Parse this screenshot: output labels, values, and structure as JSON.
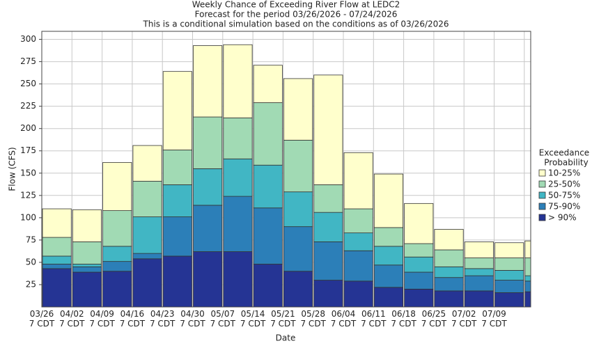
{
  "chart_data": {
    "type": "stacked-bar",
    "title": "Weekly Chance of Exceeding River Flow at LEDC2",
    "subtitle": "Forecast for the period 03/26/2026 - 07/24/2026",
    "note": "This is a conditional simulation based on the conditions as of 03/26/2026",
    "x_label": "Date",
    "y_label": "Flow (CFS)",
    "legend_title": [
      "Exceedance",
      "Probability"
    ],
    "categories": [
      "03/26 7 CDT",
      "04/02 7 CDT",
      "04/09 7 CDT",
      "04/16 7 CDT",
      "04/23 7 CDT",
      "04/30 7 CDT",
      "05/07 7 CDT",
      "05/14 7 CDT",
      "05/21 7 CDT",
      "05/28 7 CDT",
      "06/04 7 CDT",
      "06/11 7 CDT",
      "06/18 7 CDT",
      "06/25 7 CDT",
      "07/02 7 CDT",
      "07/09 7 CDT",
      null
    ],
    "series": [
      {
        "name": "> 90%",
        "color": "#253494",
        "values": [
          43,
          39,
          40,
          54,
          57,
          62,
          62,
          48,
          40,
          30,
          29,
          22,
          20,
          18,
          18,
          16,
          17
        ]
      },
      {
        "name": "75-90%",
        "color": "#2c7fb8",
        "values": [
          5,
          6,
          11,
          6,
          44,
          52,
          62,
          63,
          50,
          43,
          34,
          25,
          19,
          15,
          17,
          14,
          12
        ]
      },
      {
        "name": "50-75%",
        "color": "#41b6c4",
        "values": [
          9,
          3,
          17,
          41,
          36,
          41,
          42,
          48,
          39,
          33,
          20,
          21,
          17,
          12,
          8,
          11,
          6
        ]
      },
      {
        "name": "25-50%",
        "color": "#a1dab4",
        "values": [
          21,
          25,
          40,
          40,
          39,
          58,
          46,
          70,
          58,
          31,
          27,
          21,
          15,
          19,
          12,
          14,
          20
        ]
      },
      {
        "name": "10-25%",
        "color": "#ffffcc",
        "values": [
          32,
          36,
          54,
          40,
          88,
          80,
          82,
          42,
          69,
          123,
          63,
          60,
          45,
          23,
          18,
          17,
          19
        ]
      }
    ],
    "ylim": [
      0,
      309
    ],
    "yticks": [
      25,
      50,
      75,
      100,
      125,
      150,
      175,
      200,
      225,
      250,
      275,
      300
    ],
    "grid": true,
    "legend": "right"
  }
}
